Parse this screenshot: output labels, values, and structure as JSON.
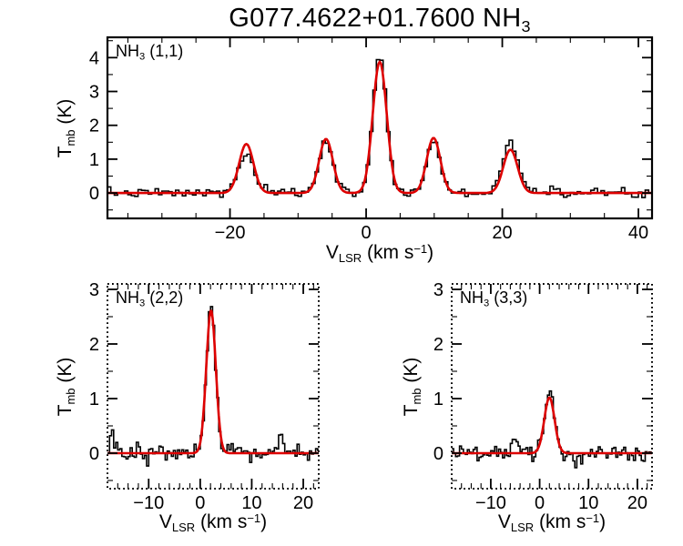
{
  "title": {
    "main": "G077.4622+01.7600 NH",
    "sub": "3"
  },
  "labels": {
    "ylabel": {
      "main": "T",
      "sub": "mb",
      "rest": " (K)"
    },
    "xlabel": {
      "main": "V",
      "sub": "LSR",
      "mid": " (km s",
      "sup": "−1",
      "end": ")"
    }
  },
  "colors": {
    "background": "#ffffff",
    "data": "#000000",
    "fit": "#dd0000",
    "frame": "#000000"
  },
  "chart_data": [
    {
      "id": "nh3-11",
      "type": "line",
      "label_parts": {
        "main": "NH",
        "sub": "3",
        "rest": " (1,1)"
      },
      "xlim": [
        -38,
        42
      ],
      "ylim": [
        -0.75,
        4.6
      ],
      "xticks": [
        -20,
        0,
        20,
        40
      ],
      "yticks": [
        0,
        1,
        2,
        3,
        4
      ],
      "xminor_step": 5,
      "yminor_step": 0.5,
      "border": "solid",
      "channel_width": 0.5,
      "noise_sigma": 0.065,
      "seed": 7,
      "data_components": [
        {
          "center": -17.6,
          "amp": 1.15,
          "sigma": 1.15
        },
        {
          "center": -5.9,
          "amp": 1.6,
          "sigma": 1.0
        },
        {
          "center": 2.0,
          "amp": 4.05,
          "sigma": 1.0
        },
        {
          "center": 9.9,
          "amp": 1.55,
          "sigma": 1.0
        },
        {
          "center": 21.2,
          "amp": 1.5,
          "sigma": 1.15
        },
        {
          "center": 27.6,
          "amp": 0.22,
          "sigma": 0.7
        }
      ],
      "fit_components": [
        {
          "center": -17.6,
          "amp": 1.45,
          "sigma": 1.05
        },
        {
          "center": -5.9,
          "amp": 1.6,
          "sigma": 1.0
        },
        {
          "center": 2.0,
          "amp": 3.88,
          "sigma": 1.02
        },
        {
          "center": 9.9,
          "amp": 1.63,
          "sigma": 1.0
        },
        {
          "center": 21.2,
          "amp": 1.28,
          "sigma": 1.05
        }
      ]
    },
    {
      "id": "nh3-22",
      "type": "line",
      "label_parts": {
        "main": "NH",
        "sub": "3",
        "rest": " (2,2)"
      },
      "xlim": [
        -18,
        23
      ],
      "ylim": [
        -0.65,
        3.1
      ],
      "xticks": [
        -10,
        0,
        10,
        20
      ],
      "yticks": [
        0,
        1,
        2,
        3
      ],
      "xminor_step": 2,
      "yminor_step": 0.5,
      "border": "dotted",
      "channel_width": 0.4,
      "noise_sigma": 0.085,
      "seed": 13,
      "data_components": [
        {
          "center": 2.1,
          "amp": 2.7,
          "sigma": 0.85
        },
        {
          "center": 15.6,
          "amp": 0.3,
          "sigma": 0.5
        },
        {
          "center": -16.8,
          "amp": 0.22,
          "sigma": 0.6
        }
      ],
      "fit_components": [
        {
          "center": 2.1,
          "amp": 2.62,
          "sigma": 0.92
        }
      ]
    },
    {
      "id": "nh3-33",
      "type": "line",
      "label_parts": {
        "main": "NH",
        "sub": "3",
        "rest": " (3,3)"
      },
      "xlim": [
        -18,
        23
      ],
      "ylim": [
        -0.65,
        3.1
      ],
      "xticks": [
        -10,
        0,
        10,
        20
      ],
      "yticks": [
        0,
        1,
        2,
        3
      ],
      "xminor_step": 2,
      "yminor_step": 0.5,
      "border": "dotted",
      "channel_width": 0.4,
      "noise_sigma": 0.08,
      "seed": 29,
      "data_components": [
        {
          "center": 2.0,
          "amp": 1.12,
          "sigma": 1.0
        },
        {
          "center": -4.6,
          "amp": 0.18,
          "sigma": 0.9
        }
      ],
      "fit_components": [
        {
          "center": 2.0,
          "amp": 1.02,
          "sigma": 1.05
        }
      ]
    }
  ]
}
